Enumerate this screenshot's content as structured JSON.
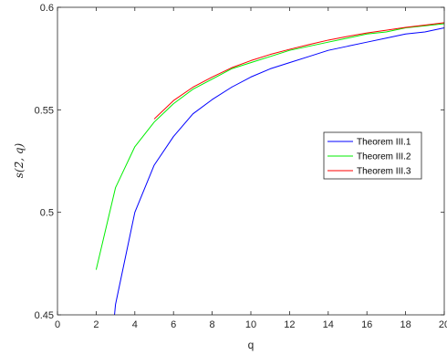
{
  "chart_data": {
    "type": "line",
    "xlabel": "q",
    "ylabel": "s(2̄, q)",
    "xlim": [
      0,
      20
    ],
    "ylim": [
      0.45,
      0.6
    ],
    "xticks": [
      0,
      2,
      4,
      6,
      8,
      10,
      12,
      14,
      16,
      18,
      20
    ],
    "yticks": [
      0.45,
      0.5,
      0.55,
      0.6
    ],
    "xtick_labels": [
      "0",
      "2",
      "4",
      "6",
      "8",
      "10",
      "12",
      "14",
      "16",
      "18",
      "20"
    ],
    "ytick_labels": [
      "0.45",
      "0.5",
      "0.55",
      "0.6"
    ],
    "grid": false,
    "legend_position": "right",
    "series": [
      {
        "name": "Theorem III.1",
        "color": "#0000ff",
        "x": [
          2.95,
          3,
          4,
          5,
          6,
          7,
          8,
          9,
          10,
          11,
          12,
          13,
          14,
          15,
          16,
          17,
          18,
          19,
          20
        ],
        "y": [
          0.45,
          0.455,
          0.5,
          0.523,
          0.537,
          0.548,
          0.555,
          0.561,
          0.566,
          0.57,
          0.573,
          0.576,
          0.579,
          0.581,
          0.583,
          0.585,
          0.587,
          0.588,
          0.59
        ]
      },
      {
        "name": "Theorem III.2",
        "color": "#00ee00",
        "x": [
          2,
          3,
          4,
          5,
          6,
          7,
          8,
          9,
          10,
          11,
          12,
          13,
          14,
          15,
          16,
          17,
          18,
          19,
          20
        ],
        "y": [
          0.472,
          0.512,
          0.532,
          0.544,
          0.553,
          0.56,
          0.565,
          0.57,
          0.573,
          0.576,
          0.579,
          0.581,
          0.583,
          0.585,
          0.587,
          0.588,
          0.59,
          0.591,
          0.592
        ]
      },
      {
        "name": "Theorem III.3",
        "color": "#ff0000",
        "x": [
          5,
          6,
          7,
          8,
          9,
          10,
          11,
          12,
          13,
          14,
          15,
          16,
          17,
          18,
          19,
          20
        ],
        "y": [
          0.5455,
          0.5545,
          0.561,
          0.566,
          0.5705,
          0.574,
          0.577,
          0.5795,
          0.5818,
          0.584,
          0.5858,
          0.5875,
          0.5888,
          0.5902,
          0.5913,
          0.5925
        ]
      }
    ]
  }
}
